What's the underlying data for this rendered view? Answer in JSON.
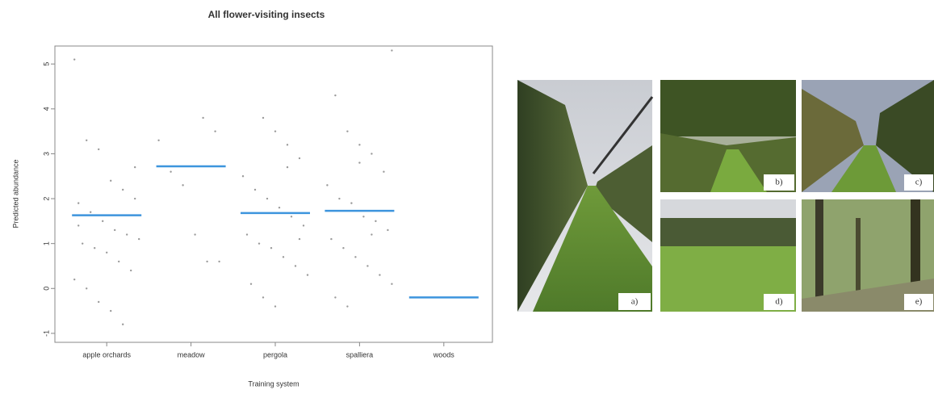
{
  "chart_data": {
    "type": "strip",
    "title": "All flower-visiting insects",
    "xlabel": "Training system",
    "ylabel": "Predicted abundance",
    "categories": [
      "apple orchards",
      "meadow",
      "pergola",
      "spalliera",
      "woods"
    ],
    "means": [
      1.63,
      2.72,
      1.68,
      1.73,
      -0.2
    ],
    "mean_color": "#3d95dd",
    "points": [
      [
        5.1,
        3.3,
        3.1,
        2.4,
        2.2,
        2.0,
        1.9,
        1.7,
        1.5,
        1.3,
        1.2,
        1.1,
        1.0,
        0.9,
        0.8,
        0.6,
        0.4,
        0.2,
        0.0,
        -0.3,
        -0.5,
        -0.8,
        2.7,
        1.4
      ],
      [
        3.8,
        3.5,
        3.3,
        2.6,
        2.3,
        1.2,
        0.6,
        0.6
      ],
      [
        3.8,
        3.5,
        3.2,
        2.9,
        2.5,
        2.2,
        2.0,
        1.8,
        1.6,
        1.4,
        1.2,
        1.0,
        0.9,
        0.7,
        0.5,
        0.3,
        0.1,
        -0.2,
        -0.4,
        2.7,
        1.1
      ],
      [
        5.3,
        4.3,
        3.5,
        3.2,
        3.0,
        2.6,
        2.3,
        2.0,
        1.9,
        1.6,
        1.5,
        1.3,
        1.1,
        0.9,
        0.7,
        0.5,
        0.3,
        0.1,
        -0.2,
        -0.4,
        2.8,
        1.2
      ],
      []
    ],
    "point_color": "#9a9a9a",
    "ylim": [
      -1.2,
      5.4
    ],
    "yticks": [
      -1,
      0,
      1,
      2,
      3,
      4,
      5
    ]
  },
  "photos": {
    "labels": [
      "a)",
      "b)",
      "c)",
      "d)",
      "e)"
    ]
  }
}
